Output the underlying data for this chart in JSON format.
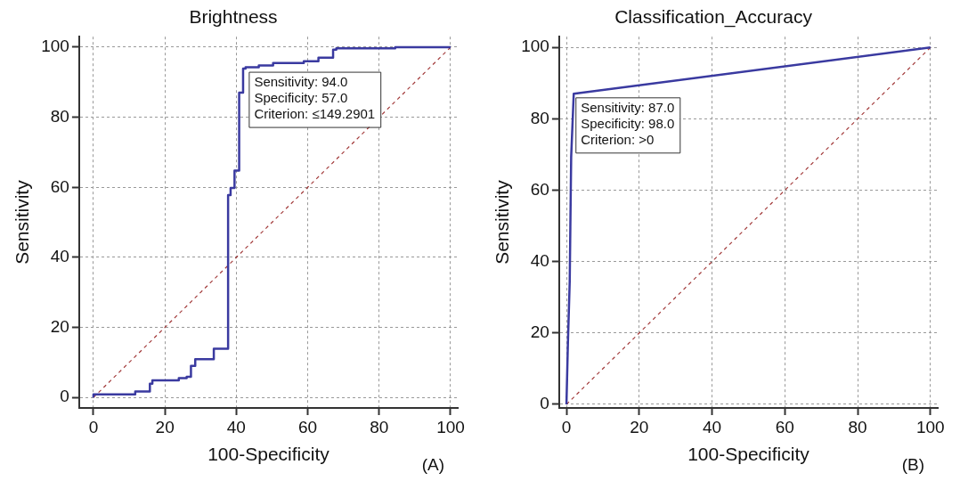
{
  "chart_data": [
    {
      "type": "step",
      "title": "Brightness",
      "xlabel": "100-Specificity",
      "ylabel": "Sensitivity",
      "xlim": [
        -4,
        102
      ],
      "ylim": [
        -3,
        103
      ],
      "xticks": [
        0,
        20,
        40,
        60,
        80,
        100
      ],
      "yticks": [
        0,
        20,
        40,
        60,
        80,
        100
      ],
      "grid": true,
      "legend": false,
      "marker": "none",
      "series": [
        {
          "color": "#3a3aa0",
          "x": [
            0,
            11.7,
            15.8,
            16.5,
            23.9,
            26.1,
            27.3,
            28.5,
            33.7,
            37.7,
            38.4,
            39.5,
            40.8,
            41.9,
            42.6,
            46.3,
            50.3,
            58.9,
            63.0,
            67.1,
            68.0,
            84.5,
            91.9,
            100
          ],
          "values": [
            0,
            0.9,
            1.7,
            3.9,
            4.9,
            5.5,
            5.9,
            9.0,
            10.9,
            13.9,
            57.8,
            59.8,
            64.8,
            87.0,
            93.9,
            94.3,
            94.8,
            95.5,
            96.0,
            97.0,
            99.3,
            99.7,
            100,
            100
          ]
        },
        {
          "type": "line",
          "color": "#a33b3b",
          "line_style": "dashed",
          "x": [
            0,
            100
          ],
          "values": [
            0,
            100
          ]
        }
      ],
      "annotations": [
        {
          "text": "Sensitivity: 94.0\nSpecificity: 57.0\nCriterion: ≤149.2901",
          "x": 43,
          "y": 94
        },
        "(A)"
      ]
    },
    {
      "type": "line",
      "title": "Classification_Accuracy",
      "xlabel": "100-Specificity",
      "ylabel": "Sensitivity",
      "xlim": [
        -2,
        102
      ],
      "ylim": [
        -1,
        103
      ],
      "xticks": [
        0,
        20,
        40,
        60,
        80,
        100
      ],
      "yticks": [
        0,
        20,
        40,
        60,
        80,
        100
      ],
      "grid": true,
      "legend": false,
      "marker": "none",
      "series": [
        {
          "color": "#3a3aa0",
          "x": [
            0,
            0.4,
            0.9,
            1.1,
            1.3,
            2,
            100
          ],
          "values": [
            0,
            17.1,
            34.5,
            52.2,
            69.4,
            87,
            100
          ]
        },
        {
          "type": "line",
          "color": "#a33b3b",
          "line_style": "dashed",
          "x": [
            0,
            100
          ],
          "values": [
            0,
            100
          ]
        }
      ],
      "annotations": [
        {
          "text": "Sensitivity: 87.0\nSpecificity: 98.0\nCriterion: >0",
          "x": 2,
          "y": 87
        },
        "(B)"
      ]
    }
  ]
}
